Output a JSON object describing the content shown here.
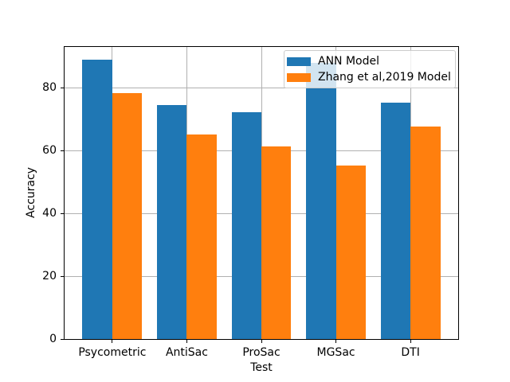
{
  "chart_data": {
    "type": "bar",
    "xlabel": "Test",
    "ylabel": "Accuracy",
    "categories": [
      "Psycometric",
      "AntiSac",
      "ProSac",
      "MGSac",
      "DTI"
    ],
    "series": [
      {
        "name": "ANN Model",
        "color": "#1f77b4",
        "values": [
          88.9,
          74.5,
          72.3,
          88.0,
          75.2
        ]
      },
      {
        "name": "Zhang et al,2019 Model",
        "color": "#ff7f0e",
        "values": [
          78.4,
          65.0,
          61.3,
          55.3,
          67.6
        ]
      }
    ],
    "yticks": [
      0,
      20,
      40,
      60,
      80
    ],
    "ylim": [
      0,
      93.0
    ],
    "xlim": [
      -0.64,
      4.64
    ],
    "bar_width": 0.4,
    "grid": true,
    "grid_color": "#b0b0b0",
    "legend_position": "upper right"
  }
}
